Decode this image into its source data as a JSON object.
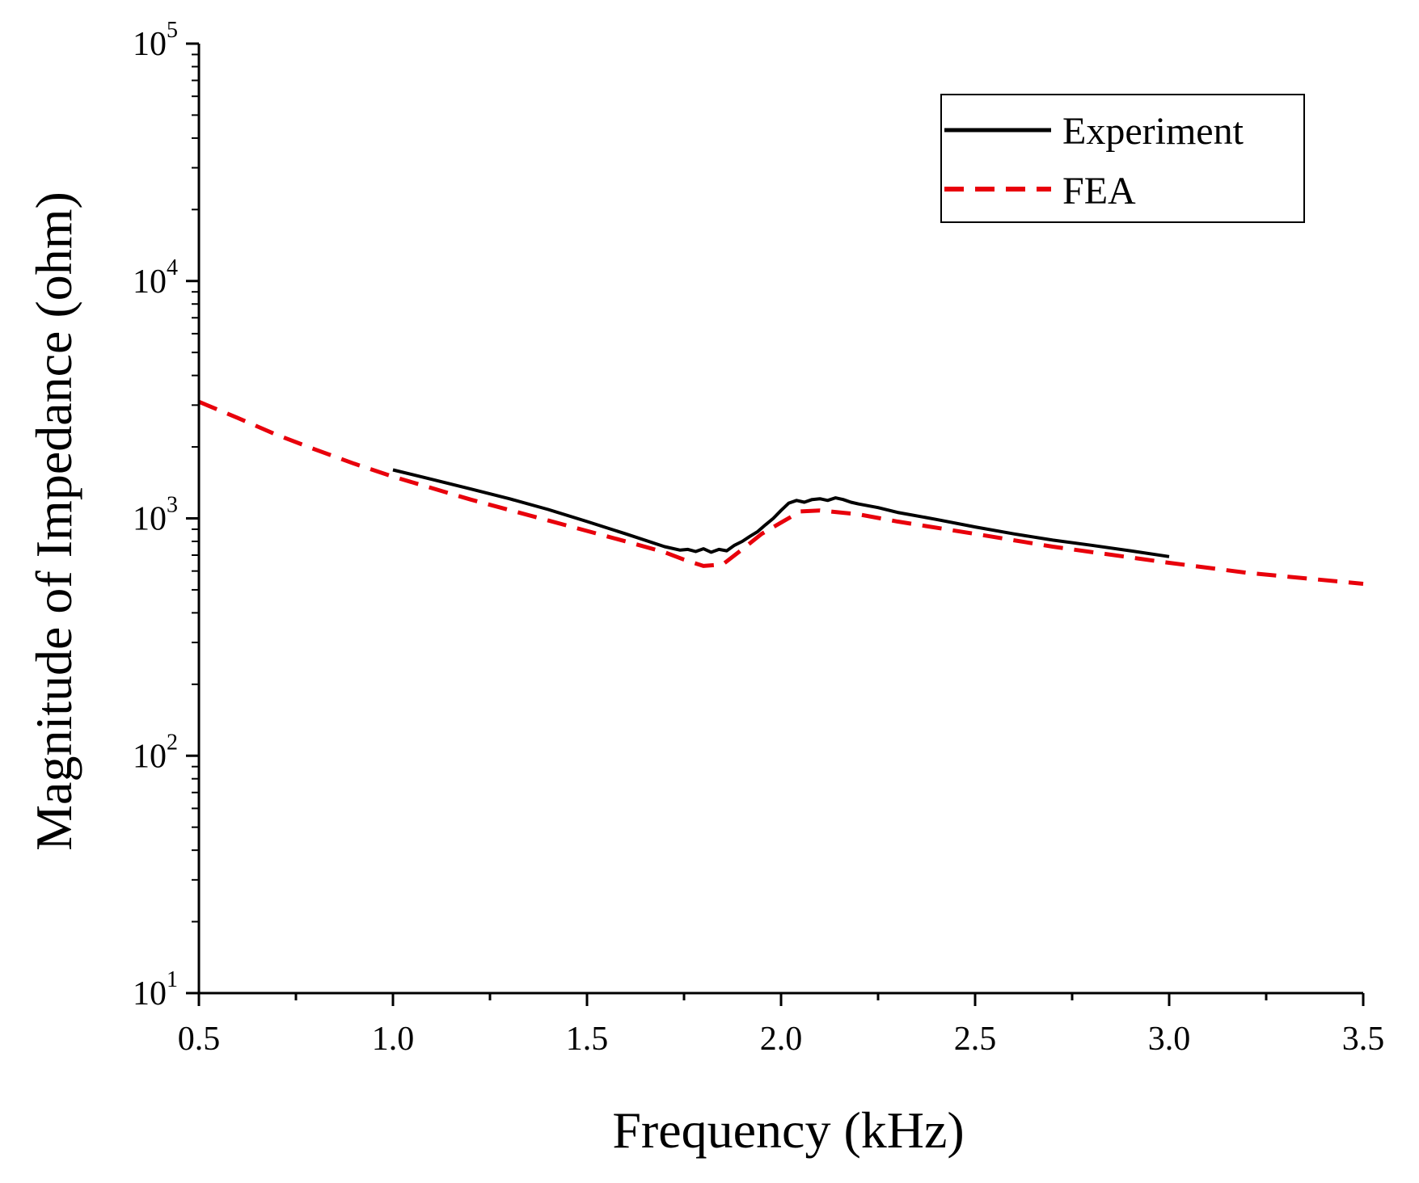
{
  "chart_data": {
    "type": "line",
    "title": "",
    "xlabel": "Frequency (kHz)",
    "ylabel": "Magnitude of Impedance (ohm)",
    "xlim": [
      0.5,
      3.5
    ],
    "ylim": [
      10,
      100000
    ],
    "yscale": "log",
    "x_ticks": [
      "0.5",
      "1.0",
      "1.5",
      "2.0",
      "2.5",
      "3.0",
      "3.5"
    ],
    "x_tick_values": [
      0.5,
      1.0,
      1.5,
      2.0,
      2.5,
      3.0,
      3.5
    ],
    "y_ticks": [
      {
        "base": "10",
        "exp": "1",
        "value": 10
      },
      {
        "base": "10",
        "exp": "2",
        "value": 100
      },
      {
        "base": "10",
        "exp": "3",
        "value": 1000
      },
      {
        "base": "10",
        "exp": "4",
        "value": 10000
      },
      {
        "base": "10",
        "exp": "5",
        "value": 100000
      }
    ],
    "grid": false,
    "legend_position": "top-right",
    "series": [
      {
        "name": "Experiment",
        "style": "solid",
        "color": "#000000",
        "x": [
          1.0,
          1.1,
          1.2,
          1.3,
          1.4,
          1.5,
          1.6,
          1.7,
          1.74,
          1.76,
          1.78,
          1.8,
          1.82,
          1.84,
          1.86,
          1.88,
          1.9,
          1.92,
          1.94,
          1.96,
          1.98,
          2.0,
          2.02,
          2.04,
          2.06,
          2.08,
          2.1,
          2.12,
          2.14,
          2.16,
          2.18,
          2.2,
          2.25,
          2.3,
          2.4,
          2.5,
          2.6,
          2.7,
          2.8,
          2.9,
          3.0
        ],
        "values": [
          1600,
          1460,
          1330,
          1210,
          1090,
          970,
          860,
          760,
          735,
          740,
          725,
          745,
          720,
          740,
          730,
          770,
          800,
          840,
          880,
          940,
          1000,
          1080,
          1160,
          1190,
          1170,
          1200,
          1210,
          1190,
          1220,
          1200,
          1170,
          1150,
          1110,
          1060,
          990,
          920,
          860,
          810,
          770,
          730,
          690
        ]
      },
      {
        "name": "FEA",
        "style": "dashed",
        "color": "#e8000b",
        "x": [
          0.5,
          0.6,
          0.7,
          0.8,
          0.9,
          1.0,
          1.2,
          1.4,
          1.6,
          1.7,
          1.75,
          1.8,
          1.85,
          1.9,
          1.95,
          2.0,
          2.05,
          2.1,
          2.2,
          2.3,
          2.5,
          2.7,
          3.0,
          3.2,
          3.5
        ],
        "values": [
          3100,
          2650,
          2250,
          1950,
          1700,
          1500,
          1200,
          980,
          800,
          720,
          670,
          630,
          640,
          740,
          860,
          960,
          1070,
          1080,
          1040,
          970,
          860,
          760,
          650,
          590,
          530
        ]
      }
    ]
  }
}
